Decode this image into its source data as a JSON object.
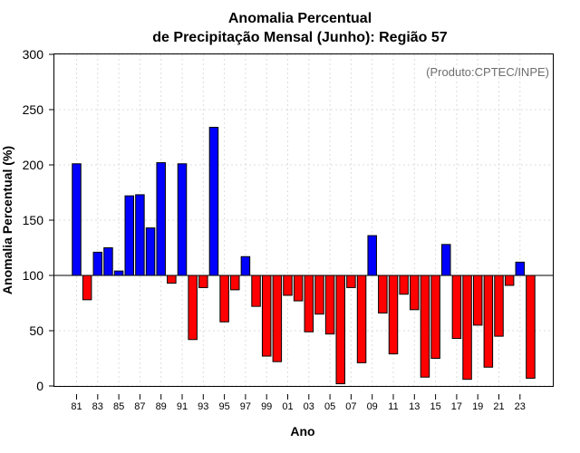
{
  "chart_data": {
    "type": "bar",
    "title_line1": "Anomalia Percentual",
    "title_line2": "de Precipitação Mensal (Junho): Região 57",
    "xlabel": "Ano",
    "ylabel": "Anomalia Percentual (%)",
    "annotation": "(Produto:CPTEC/INPE)",
    "ylim": [
      0,
      300
    ],
    "yticks": [
      0,
      50,
      100,
      150,
      200,
      250,
      300
    ],
    "baseline": 100,
    "colors": {
      "above": "#0000ff",
      "below": "#ff0000"
    },
    "xtick_labels": [
      "81",
      "83",
      "85",
      "87",
      "89",
      "91",
      "93",
      "95",
      "97",
      "99",
      "01",
      "03",
      "05",
      "07",
      "09",
      "11",
      "13",
      "15",
      "17",
      "19",
      "21",
      "23"
    ],
    "categories": [
      "1981",
      "1982",
      "1983",
      "1984",
      "1985",
      "1986",
      "1987",
      "1988",
      "1989",
      "1990",
      "1991",
      "1992",
      "1993",
      "1994",
      "1995",
      "1996",
      "1997",
      "1998",
      "1999",
      "2000",
      "2001",
      "2002",
      "2003",
      "2004",
      "2005",
      "2006",
      "2007",
      "2008",
      "2009",
      "2010",
      "2011",
      "2012",
      "2013",
      "2014",
      "2015",
      "2016",
      "2017",
      "2018",
      "2019",
      "2020",
      "2021",
      "2022",
      "2023",
      "2024"
    ],
    "values": [
      201,
      78,
      121,
      125,
      104,
      172,
      173,
      143,
      202,
      93,
      201,
      42,
      89,
      234,
      58,
      87,
      117,
      72,
      27,
      22,
      82,
      77,
      49,
      65,
      47,
      2,
      89,
      21,
      136,
      66,
      29,
      83,
      69,
      8,
      25,
      128,
      43,
      6,
      55,
      17,
      45,
      91,
      112,
      7
    ]
  }
}
